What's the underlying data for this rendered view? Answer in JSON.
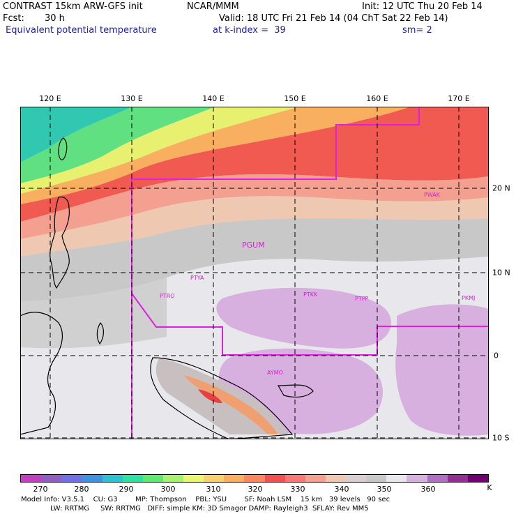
{
  "header": {
    "line1_left": "CONTRAST 15km ARW-GFS init",
    "line1_mid": "NCAR/MMM",
    "line1_right": "Init: 12 UTC Thu 20 Feb 14",
    "line2_left": "Fcst:",
    "line2_hours": "30 h",
    "line2_right": "Valid: 18 UTC Fri 21 Feb 14 (04 ChT Sat 22 Feb 14)",
    "line3_left": "Equivalent potential temperature",
    "line3_mid": "at k-index =  39",
    "line3_right": "sm= 2"
  },
  "lon_labels": [
    "120 E",
    "130 E",
    "140 E",
    "150 E",
    "160 E",
    "170 E"
  ],
  "lat_labels": [
    "20 N",
    "10 N",
    "0",
    "10 S"
  ],
  "stations": [
    "PGUM",
    "PTYA",
    "PTRO",
    "PTKK",
    "PTPP",
    "PKMJ",
    "PWAK",
    "AYMO"
  ],
  "colorbar": {
    "colors": [
      "#c040c0",
      "#9060c0",
      "#7070e0",
      "#4090e0",
      "#30c0d0",
      "#30e0a0",
      "#60e870",
      "#a8f070",
      "#e8f870",
      "#f8d070",
      "#f8b060",
      "#f88860",
      "#f05050",
      "#f87878",
      "#f4a090",
      "#eec8b0",
      "#d8d0d0",
      "#c8c8c8",
      "#e8e8ec",
      "#d8b0e0",
      "#b070c0",
      "#903090",
      "#700070"
    ],
    "labels": [
      "270",
      "280",
      "290",
      "300",
      "310",
      "320",
      "330",
      "340",
      "350",
      "360",
      "K"
    ]
  },
  "model_info": {
    "line1": "Model Info: V3.5.1    CU: G3        MP: Thompson    PBL: YSU        SF: Noah LSM    15 km   39 levels   90 sec",
    "line2": "LW: RRTMG     SW: RRTMG   DIFF: simple KM: 3D Smagor DAMP: Rayleigh3  SFLAY: Rev MM5"
  }
}
